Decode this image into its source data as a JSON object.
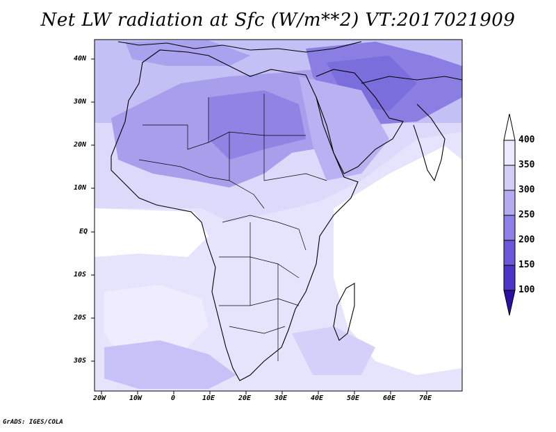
{
  "title": "Net LW radiation at Sfc (W/m**2) VT:2017021909",
  "footer": "GrADS: IGES/COLA",
  "lon_ticks": [
    "20W",
    "10W",
    "0",
    "10E",
    "20E",
    "30E",
    "40E",
    "50E",
    "60E",
    "70E"
  ],
  "lat_ticks": [
    "40N",
    "30N",
    "20N",
    "10N",
    "EQ",
    "10S",
    "20S",
    "30S"
  ],
  "colorbar": {
    "levels": [
      "100",
      "150",
      "200",
      "250",
      "300",
      "350",
      "400"
    ],
    "colors": [
      "#2a0fa0",
      "#4b35c8",
      "#6b58d8",
      "#8e80e6",
      "#b3acf0",
      "#d2cef8",
      "#eceaff"
    ]
  },
  "fill_colors": {
    "sea_north": "#c0bdf5",
    "sahara": "#a29aec",
    "deep": "#7f74e0",
    "equatorial": "#e4e2fc",
    "south": "#d6d3fa",
    "indian_ocean": "#ffffff"
  }
}
